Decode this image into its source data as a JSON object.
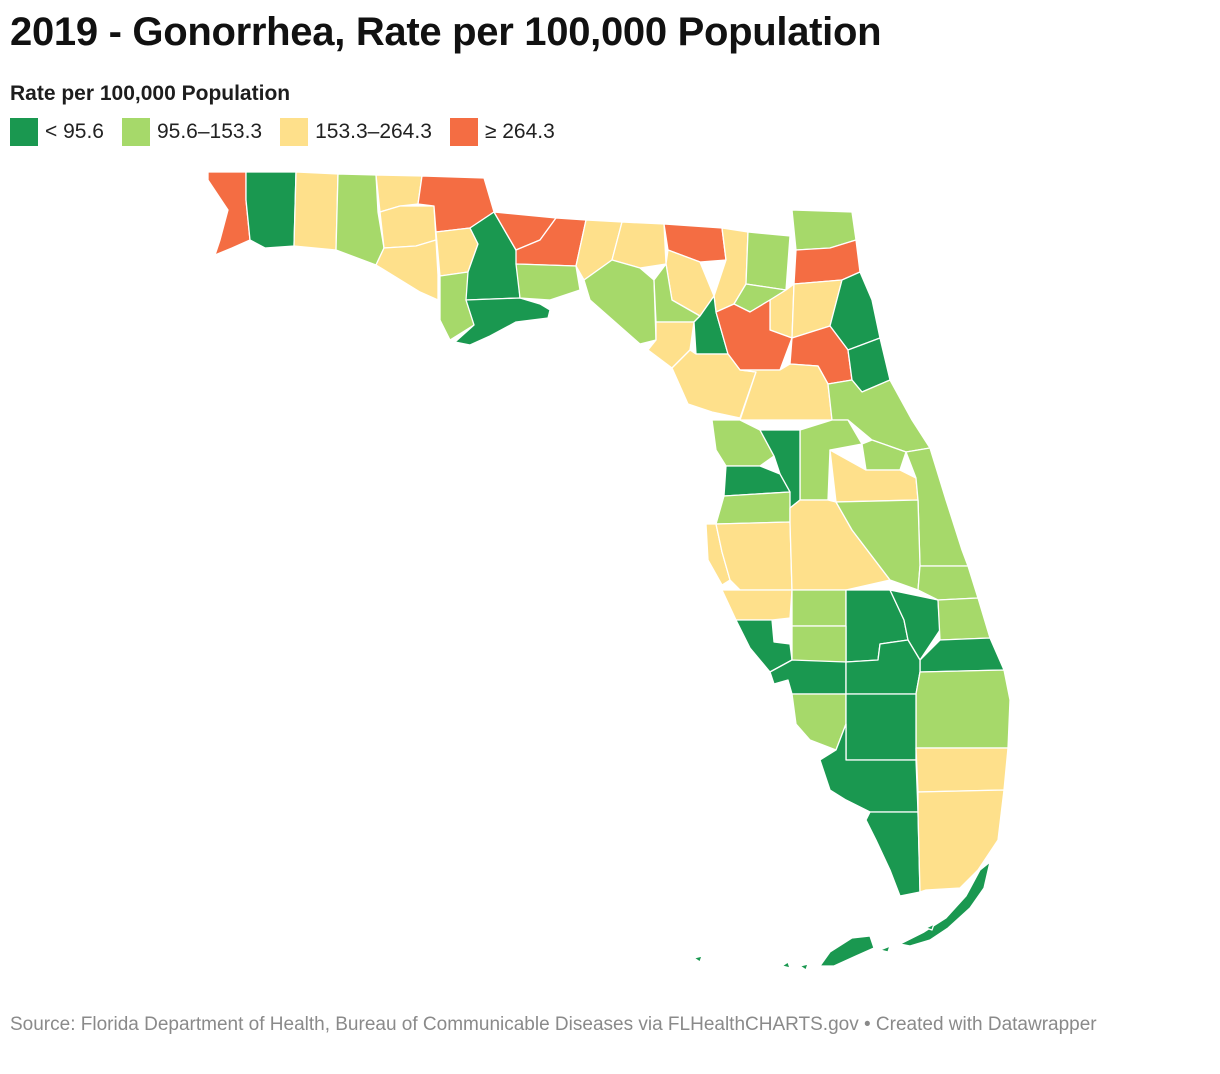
{
  "title": "2019 - Gonorrhea, Rate per 100,000 Population",
  "legend": {
    "title": "Rate per 100,000 Population",
    "items": [
      {
        "label": "< 95.6",
        "color": "#1a9850"
      },
      {
        "label": "95.6–153.3",
        "color": "#a6d96a"
      },
      {
        "label": "153.3–264.3",
        "color": "#fee08b"
      },
      {
        "label": "≥ 264.3",
        "color": "#f46d43"
      }
    ]
  },
  "footer": "Source: Florida Department of Health, Bureau of Communicable Diseases via FLHealthCHARTS.gov • Created with Datawrapper"
}
